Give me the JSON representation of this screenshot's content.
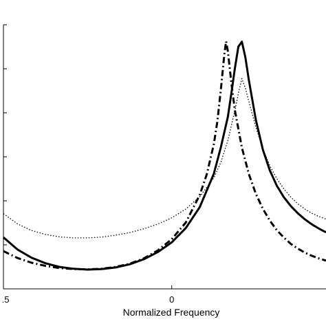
{
  "chart_data": {
    "type": "line",
    "xlabel": "Normalized Frequency",
    "ylabel": "",
    "title": "",
    "xlim": [
      -0.48,
      0.44
    ],
    "ylim": [
      0,
      1
    ],
    "x_ticks": [
      {
        "value": -0.5,
        "label": ".5"
      },
      {
        "value": 0,
        "label": "0"
      }
    ],
    "y_ticks": [
      0,
      0.1667,
      0.3333,
      0.5,
      0.6667,
      0.8333,
      1
    ],
    "grid": false,
    "legend": "none",
    "series": [
      {
        "style": "solid",
        "points": [
          [
            -0.48,
            0.195
          ],
          [
            -0.44,
            0.149
          ],
          [
            -0.4,
            0.118
          ],
          [
            -0.36,
            0.097
          ],
          [
            -0.32,
            0.083
          ],
          [
            -0.28,
            0.076
          ],
          [
            -0.24,
            0.073
          ],
          [
            -0.2,
            0.075
          ],
          [
            -0.16,
            0.081
          ],
          [
            -0.12,
            0.093
          ],
          [
            -0.08,
            0.112
          ],
          [
            -0.04,
            0.139
          ],
          [
            0.0,
            0.176
          ],
          [
            0.04,
            0.23
          ],
          [
            0.08,
            0.31
          ],
          [
            0.12,
            0.436
          ],
          [
            0.14,
            0.536
          ],
          [
            0.16,
            0.651
          ],
          [
            0.17,
            0.74
          ],
          [
            0.18,
            0.835
          ],
          [
            0.19,
            0.917
          ],
          [
            0.2,
            0.936
          ],
          [
            0.21,
            0.876
          ],
          [
            0.22,
            0.791
          ],
          [
            0.24,
            0.64
          ],
          [
            0.26,
            0.527
          ],
          [
            0.28,
            0.448
          ],
          [
            0.3,
            0.39
          ],
          [
            0.32,
            0.347
          ],
          [
            0.34,
            0.313
          ],
          [
            0.36,
            0.286
          ],
          [
            0.38,
            0.263
          ],
          [
            0.4,
            0.244
          ],
          [
            0.42,
            0.228
          ],
          [
            0.44,
            0.214
          ]
        ]
      },
      {
        "style": "dashdot",
        "points": [
          [
            -0.48,
            0.143
          ],
          [
            -0.44,
            0.117
          ],
          [
            -0.4,
            0.099
          ],
          [
            -0.36,
            0.087
          ],
          [
            -0.32,
            0.079
          ],
          [
            -0.28,
            0.075
          ],
          [
            -0.24,
            0.074
          ],
          [
            -0.2,
            0.076
          ],
          [
            -0.16,
            0.083
          ],
          [
            -0.12,
            0.095
          ],
          [
            -0.08,
            0.115
          ],
          [
            -0.04,
            0.145
          ],
          [
            0.0,
            0.188
          ],
          [
            0.04,
            0.251
          ],
          [
            0.08,
            0.356
          ],
          [
            0.1,
            0.434
          ],
          [
            0.12,
            0.548
          ],
          [
            0.13,
            0.633
          ],
          [
            0.14,
            0.754
          ],
          [
            0.15,
            0.888
          ],
          [
            0.155,
            0.937
          ],
          [
            0.16,
            0.9
          ],
          [
            0.17,
            0.78
          ],
          [
            0.18,
            0.676
          ],
          [
            0.2,
            0.535
          ],
          [
            0.22,
            0.435
          ],
          [
            0.24,
            0.36
          ],
          [
            0.26,
            0.303
          ],
          [
            0.28,
            0.258
          ],
          [
            0.3,
            0.222
          ],
          [
            0.32,
            0.194
          ],
          [
            0.34,
            0.17
          ],
          [
            0.36,
            0.152
          ],
          [
            0.38,
            0.137
          ],
          [
            0.4,
            0.125
          ],
          [
            0.42,
            0.115
          ],
          [
            0.44,
            0.107
          ]
        ]
      },
      {
        "style": "dotted",
        "points": [
          [
            -0.48,
            0.285
          ],
          [
            -0.44,
            0.246
          ],
          [
            -0.4,
            0.221
          ],
          [
            -0.36,
            0.206
          ],
          [
            -0.32,
            0.197
          ],
          [
            -0.28,
            0.193
          ],
          [
            -0.24,
            0.193
          ],
          [
            -0.2,
            0.196
          ],
          [
            -0.16,
            0.203
          ],
          [
            -0.12,
            0.213
          ],
          [
            -0.08,
            0.227
          ],
          [
            -0.04,
            0.245
          ],
          [
            0.0,
            0.269
          ],
          [
            0.04,
            0.302
          ],
          [
            0.08,
            0.349
          ],
          [
            0.12,
            0.42
          ],
          [
            0.14,
            0.479
          ],
          [
            0.16,
            0.562
          ],
          [
            0.18,
            0.675
          ],
          [
            0.19,
            0.741
          ],
          [
            0.2,
            0.796
          ],
          [
            0.21,
            0.76
          ],
          [
            0.22,
            0.71
          ],
          [
            0.24,
            0.612
          ],
          [
            0.26,
            0.53
          ],
          [
            0.28,
            0.466
          ],
          [
            0.3,
            0.417
          ],
          [
            0.32,
            0.378
          ],
          [
            0.34,
            0.347
          ],
          [
            0.36,
            0.322
          ],
          [
            0.38,
            0.302
          ],
          [
            0.4,
            0.286
          ],
          [
            0.42,
            0.274
          ],
          [
            0.44,
            0.264
          ]
        ]
      }
    ]
  }
}
